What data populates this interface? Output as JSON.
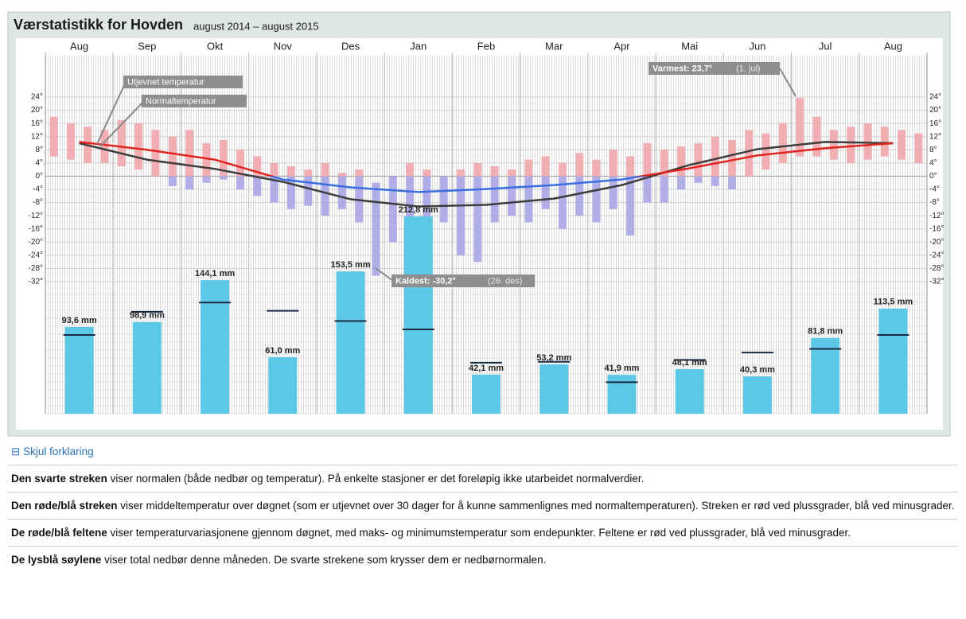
{
  "chart_data": {
    "type": "weather",
    "title": "Værstatistikk for Hovden",
    "subtitle": "august 2014 – august 2015",
    "categories": [
      "Aug",
      "Sep",
      "Okt",
      "Nov",
      "Des",
      "Jan",
      "Feb",
      "Mar",
      "Apr",
      "Mai",
      "Jun",
      "Jul",
      "Aug"
    ],
    "ylim": [
      -32,
      24
    ],
    "yticks": [
      {
        "value": 24,
        "label": "24°"
      },
      {
        "value": 20,
        "label": "20°"
      },
      {
        "value": 16,
        "label": "16°"
      },
      {
        "value": 12,
        "label": "12°"
      },
      {
        "value": 8,
        "label": "8°"
      },
      {
        "value": 4,
        "label": "4°"
      },
      {
        "value": 0,
        "label": "0°"
      },
      {
        "value": -4,
        "label": "-4°"
      },
      {
        "value": -8,
        "label": "-8°"
      },
      {
        "value": -12,
        "label": "-12°"
      },
      {
        "value": -16,
        "label": "-16°"
      },
      {
        "value": -20,
        "label": "-20°"
      },
      {
        "value": -24,
        "label": "-24°"
      },
      {
        "value": -28,
        "label": "-28°"
      },
      {
        "value": -32,
        "label": "-32°"
      }
    ],
    "grid": true,
    "temperature_series": [
      {
        "name": "Utjevnet temperatur",
        "color": "#e0241f",
        "negative_color": "#3a6fe0",
        "values": [
          10.4,
          8,
          5,
          -1,
          -3.4,
          -4.8,
          -3.9,
          -2.7,
          -1,
          2.4,
          6.3,
          8.5,
          10
        ]
      },
      {
        "name": "Normaltemperatur",
        "color": "#3d3d3d",
        "values": [
          10,
          5,
          2.2,
          -1.7,
          -7,
          -9.2,
          -8.7,
          -6.8,
          -2.7,
          3.4,
          8.2,
          10.4,
          10
        ]
      }
    ],
    "daily_range": {
      "color": "#f1a7ac",
      "negative_color": "#aaa6e6",
      "max": [
        18,
        16,
        15,
        14,
        17,
        16,
        14,
        12,
        14,
        10,
        11,
        8,
        6,
        4,
        3,
        2,
        4,
        1,
        2,
        -2,
        0,
        4,
        2,
        0,
        2,
        4,
        3,
        2,
        5,
        6,
        4,
        7,
        5,
        8,
        6,
        10,
        8,
        9,
        10,
        12,
        11,
        14,
        13,
        16,
        23.7,
        18,
        14,
        15,
        16,
        15,
        14,
        13
      ],
      "min": [
        6,
        5,
        4,
        4,
        3,
        2,
        0,
        -3,
        -4,
        -2,
        -1,
        -4,
        -6,
        -8,
        -10,
        -9,
        -12,
        -10,
        -14,
        -30.2,
        -20,
        -18,
        -16,
        -14,
        -24,
        -26,
        -14,
        -12,
        -14,
        -10,
        -16,
        -12,
        -14,
        -10,
        -18,
        -8,
        -8,
        -4,
        -2,
        -3,
        -4,
        0,
        2,
        4,
        6,
        6,
        5,
        4,
        5,
        6,
        5,
        4
      ]
    },
    "precipitation": {
      "name": "Nedbør",
      "color": "#5bc8e6",
      "normal_color": "#1a2a44",
      "values": [
        93.6,
        98.9,
        144.1,
        61.0,
        153.5,
        212.8,
        42.1,
        53.2,
        41.9,
        48.1,
        40.3,
        81.8,
        113.5
      ],
      "value_labels": [
        "93,6 mm",
        "98,9 mm",
        "144,1 mm",
        "61,0 mm",
        "153,5 mm",
        "212,8 mm",
        "42,1 mm",
        "53,2 mm",
        "41,9 mm",
        "48,1 mm",
        "40,3 mm",
        "81,8 mm",
        "113,5 mm"
      ],
      "normals": [
        85,
        110,
        120,
        111,
        100,
        91,
        55,
        56,
        34,
        58,
        66,
        70,
        85
      ]
    },
    "annotations": {
      "warmest": {
        "label": "Varmest: 23,7°",
        "date": "(1. jul)"
      },
      "coldest": {
        "label": "Kaldest: -30,2°",
        "date": "(26. des)"
      }
    }
  },
  "explanation": {
    "toggle": "Skjul forklaring",
    "paragraphs": [
      {
        "bold": "Den svarte streken",
        "text": " viser normalen (både nedbør og temperatur). På enkelte stasjoner er det foreløpig ikke utarbeidet normalverdier."
      },
      {
        "bold": "Den røde/blå streken",
        "text": " viser middeltemperatur over døgnet (som er utjevnet over 30 dager for å kunne sammenlignes med normaltemperaturen). Streken er rød ved plussgrader, blå ved minusgrader."
      },
      {
        "bold": "De røde/blå feltene",
        "text": " viser temperaturvariasjonene gjennom døgnet, med maks- og minimumstemperatur som endepunkter. Feltene er rød ved plussgrader, blå ved minusgrader."
      },
      {
        "bold": "De lysblå søylene",
        "text": " viser total nedbør denne måneden. De svarte strekene som krysser dem er nedbørnormalen."
      }
    ]
  }
}
